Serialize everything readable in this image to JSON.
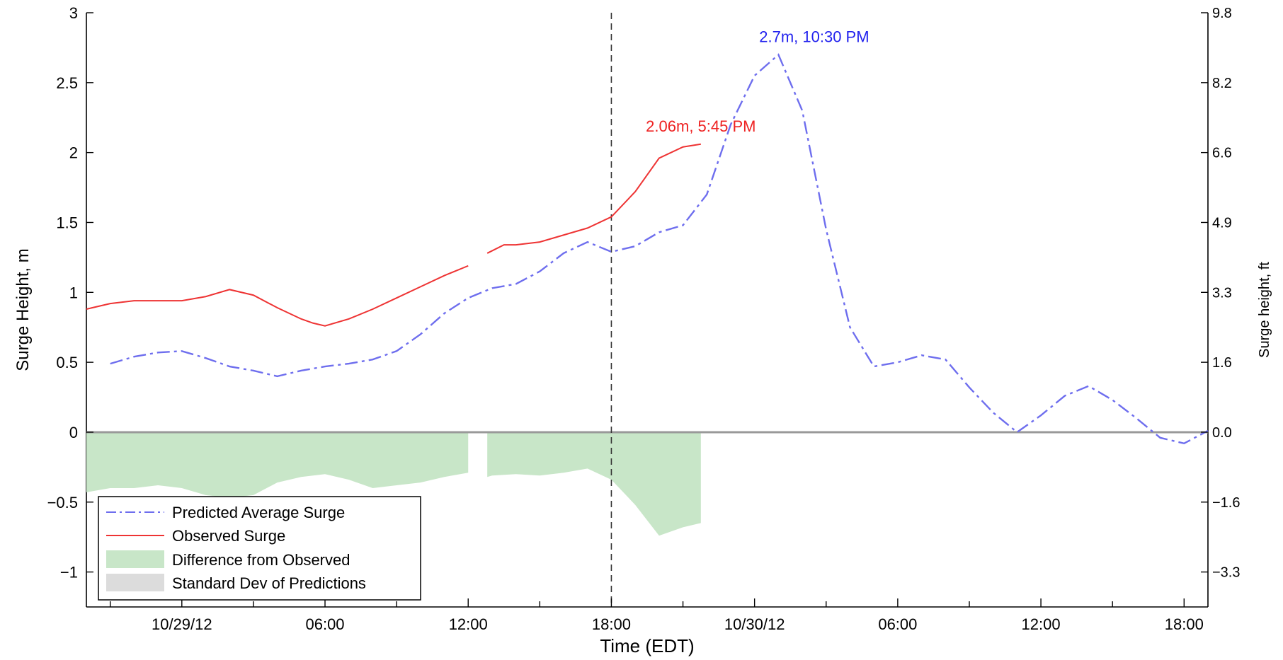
{
  "chart_data": {
    "type": "line",
    "title": "",
    "xlabel": "Time (EDT)",
    "ylabel": "Surge Height, m",
    "ylabel_right": "Surge height, ft",
    "x_unit": "hours from 10/29/12 00:00 EDT",
    "xlim": [
      -4,
      43
    ],
    "ylim": [
      -1.25,
      3
    ],
    "x_ticks": [
      {
        "x": 0,
        "label": "10/29/12"
      },
      {
        "x": 6,
        "label": "06:00"
      },
      {
        "x": 12,
        "label": "12:00"
      },
      {
        "x": 18,
        "label": "18:00"
      },
      {
        "x": 24,
        "label": "10/30/12"
      },
      {
        "x": 30,
        "label": "06:00"
      },
      {
        "x": 36,
        "label": "12:00"
      },
      {
        "x": 42,
        "label": "18:00"
      }
    ],
    "y_ticks": [
      {
        "y": -1,
        "label": "−1"
      },
      {
        "y": -0.5,
        "label": "−0.5"
      },
      {
        "y": 0,
        "label": "0"
      },
      {
        "y": 0.5,
        "label": "0.5"
      },
      {
        "y": 1,
        "label": "1"
      },
      {
        "y": 1.5,
        "label": "1.5"
      },
      {
        "y": 2,
        "label": "2"
      },
      {
        "y": 2.5,
        "label": "2.5"
      },
      {
        "y": 3,
        "label": "3"
      }
    ],
    "y_ticks_right": [
      {
        "y": -1,
        "label": "−3.3"
      },
      {
        "y": -0.5,
        "label": "−1.6"
      },
      {
        "y": 0,
        "label": "0.0"
      },
      {
        "y": 0.5,
        "label": "1.6"
      },
      {
        "y": 1,
        "label": "3.3"
      },
      {
        "y": 1.5,
        "label": "4.9"
      },
      {
        "y": 2,
        "label": "6.6"
      },
      {
        "y": 2.5,
        "label": "8.2"
      },
      {
        "y": 3,
        "label": "9.8"
      }
    ],
    "now_line_x": 18,
    "series": [
      {
        "name": "Predicted Average Surge",
        "color": "#6e6eee",
        "style": "dash-dot",
        "x": [
          -3,
          -2,
          -1,
          0,
          1,
          2,
          3,
          4,
          5,
          6,
          7,
          8,
          9,
          10,
          11,
          12,
          13,
          14,
          15,
          16,
          17,
          18,
          19,
          20,
          21,
          22,
          23,
          24,
          25,
          26,
          27,
          28,
          29,
          30,
          31,
          32,
          33,
          34,
          35,
          36,
          37,
          38,
          39,
          40,
          41,
          42,
          43
        ],
        "y": [
          0.49,
          0.54,
          0.57,
          0.58,
          0.53,
          0.47,
          0.44,
          0.4,
          0.44,
          0.47,
          0.49,
          0.52,
          0.58,
          0.7,
          0.85,
          0.96,
          1.03,
          1.06,
          1.15,
          1.28,
          1.36,
          1.29,
          1.33,
          1.43,
          1.48,
          1.7,
          2.2,
          2.55,
          2.7,
          2.3,
          1.45,
          0.75,
          0.47,
          0.5,
          0.55,
          0.52,
          0.32,
          0.14,
          0.0,
          0.12,
          0.26,
          0.33,
          0.23,
          0.1,
          -0.04,
          -0.08,
          0.01
        ]
      },
      {
        "name": "Observed Surge",
        "color": "#ee3333",
        "style": "solid",
        "segments": [
          {
            "x": [
              -4,
              -3,
              -2,
              -1,
              0,
              1,
              2,
              3,
              4,
              5,
              5.5,
              6,
              7,
              8,
              9,
              10,
              11,
              12
            ],
            "y": [
              0.88,
              0.92,
              0.94,
              0.94,
              0.94,
              0.97,
              1.02,
              0.98,
              0.89,
              0.81,
              0.78,
              0.76,
              0.81,
              0.88,
              0.96,
              1.04,
              1.12,
              1.19
            ]
          },
          {
            "x": [
              12.8,
              13.5,
              14,
              15,
              16,
              17,
              18,
              19,
              20,
              21,
              21.75
            ],
            "y": [
              1.28,
              1.34,
              1.34,
              1.36,
              1.41,
              1.46,
              1.54,
              1.72,
              1.96,
              2.04,
              2.06
            ]
          }
        ]
      },
      {
        "name": "Difference from Observed",
        "color": "#c8e6c8",
        "type": "area",
        "segments": [
          {
            "x": [
              -4,
              -3,
              -2,
              -1,
              0,
              1,
              2,
              3,
              4,
              5,
              6,
              7,
              8,
              9,
              10,
              11,
              12
            ],
            "y": [
              -0.43,
              -0.4,
              -0.4,
              -0.38,
              -0.4,
              -0.45,
              -0.47,
              -0.45,
              -0.36,
              -0.32,
              -0.3,
              -0.34,
              -0.4,
              -0.38,
              -0.36,
              -0.32,
              -0.29
            ]
          },
          {
            "x": [
              12.8,
              13,
              14,
              15,
              16,
              17,
              18,
              19,
              20,
              21,
              21.75
            ],
            "y": [
              -0.32,
              -0.31,
              -0.3,
              -0.31,
              -0.29,
              -0.26,
              -0.34,
              -0.52,
              -0.74,
              -0.68,
              -0.65
            ]
          }
        ]
      },
      {
        "name": "Standard Dev of Predictions",
        "color": "#dcdcdc",
        "type": "area",
        "values": []
      }
    ],
    "annotations": [
      {
        "text": "2.06m, 5:45 PM",
        "x": 21.75,
        "y": 2.06,
        "color": "#ee2222"
      },
      {
        "text": "2.7m, 10:30 PM",
        "x": 26.5,
        "y": 2.7,
        "color": "#2222ee"
      }
    ],
    "legend": {
      "position": "bottom-left"
    },
    "grid": false
  }
}
